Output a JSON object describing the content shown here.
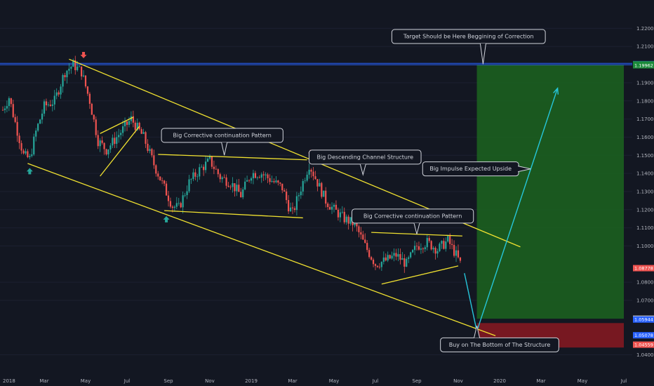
{
  "chart_data": {
    "type": "candlestick",
    "colors": {
      "background": "#131722",
      "up": "#26a69a",
      "down": "#ef5350",
      "trendline": "#f0e130",
      "level_line": "#2962ff",
      "projection": "#26c6da",
      "profit_zone": "#1b5e20",
      "loss_zone": "#801922",
      "axis_text": "#b2b5be"
    },
    "x_axis": {
      "ticks": [
        "2018",
        "Mar",
        "May",
        "Jul",
        "Sep",
        "Nov",
        "2019",
        "Mar",
        "May",
        "Jul",
        "Sep",
        "Nov",
        "2020",
        "Mar",
        "May",
        "Jul"
      ]
    },
    "y_axis": {
      "ylim": [
        1.0375,
        1.2275
      ],
      "ticks": [
        "1.22000",
        "1.21000",
        "1.19000",
        "1.18000",
        "1.17000",
        "1.16000",
        "1.15000",
        "1.14000",
        "1.13000",
        "1.12000",
        "1.11000",
        "1.10000",
        "1.08000",
        "1.07000",
        "1.04000"
      ]
    },
    "price_badges": [
      {
        "label": "1.20027",
        "value": 1.20027,
        "color": "#2962ff"
      },
      {
        "label": "1.20014",
        "value": 1.20014,
        "color": "#1b8a3a"
      },
      {
        "label": "1.19962",
        "value": 1.19962,
        "color": "#1b8a3a"
      },
      {
        "label": "1.08778",
        "value": 1.08778,
        "color": "#ef5350"
      },
      {
        "label": "1.05992",
        "value": 1.05992,
        "color": "#b2b5be"
      },
      {
        "label": "1.05944",
        "value": 1.05944,
        "color": "#2962ff"
      },
      {
        "label": "1.05078",
        "value": 1.05078,
        "color": "#2962ff"
      },
      {
        "label": "1.04559",
        "value": 1.04559,
        "color": "#ef5350"
      }
    ],
    "price_path": [
      {
        "t": 0.0,
        "p": 1.175
      },
      {
        "t": 0.3,
        "p": 1.182
      },
      {
        "t": 0.6,
        "p": 1.168
      },
      {
        "t": 1.0,
        "p": 1.15
      },
      {
        "t": 1.3,
        "p": 1.148
      },
      {
        "t": 1.6,
        "p": 1.163
      },
      {
        "t": 2.0,
        "p": 1.177
      },
      {
        "t": 2.5,
        "p": 1.18
      },
      {
        "t": 3.0,
        "p": 1.196
      },
      {
        "t": 3.4,
        "p": 1.2
      },
      {
        "t": 3.8,
        "p": 1.196
      },
      {
        "t": 4.2,
        "p": 1.18
      },
      {
        "t": 4.6,
        "p": 1.158
      },
      {
        "t": 5.0,
        "p": 1.153
      },
      {
        "t": 5.5,
        "p": 1.16
      },
      {
        "t": 6.2,
        "p": 1.17
      },
      {
        "t": 6.8,
        "p": 1.16
      },
      {
        "t": 7.3,
        "p": 1.145
      },
      {
        "t": 7.8,
        "p": 1.132
      },
      {
        "t": 8.2,
        "p": 1.122
      },
      {
        "t": 8.5,
        "p": 1.121
      },
      {
        "t": 9.0,
        "p": 1.135
      },
      {
        "t": 9.5,
        "p": 1.142
      },
      {
        "t": 10.0,
        "p": 1.147
      },
      {
        "t": 10.5,
        "p": 1.138
      },
      {
        "t": 11.0,
        "p": 1.135
      },
      {
        "t": 11.5,
        "p": 1.128
      },
      {
        "t": 12.0,
        "p": 1.14
      },
      {
        "t": 12.5,
        "p": 1.14
      },
      {
        "t": 13.0,
        "p": 1.136
      },
      {
        "t": 13.5,
        "p": 1.132
      },
      {
        "t": 13.8,
        "p": 1.122
      },
      {
        "t": 14.0,
        "p": 1.118
      },
      {
        "t": 14.4,
        "p": 1.132
      },
      {
        "t": 14.8,
        "p": 1.145
      },
      {
        "t": 15.2,
        "p": 1.135
      },
      {
        "t": 15.6,
        "p": 1.125
      },
      {
        "t": 16.0,
        "p": 1.12
      },
      {
        "t": 16.5,
        "p": 1.115
      },
      {
        "t": 17.0,
        "p": 1.112
      },
      {
        "t": 17.5,
        "p": 1.1
      },
      {
        "t": 18.0,
        "p": 1.09
      },
      {
        "t": 18.5,
        "p": 1.092
      },
      {
        "t": 19.0,
        "p": 1.095
      },
      {
        "t": 19.5,
        "p": 1.09
      },
      {
        "t": 20.0,
        "p": 1.1
      },
      {
        "t": 20.5,
        "p": 1.102
      },
      {
        "t": 21.0,
        "p": 1.098
      },
      {
        "t": 21.5,
        "p": 1.103
      },
      {
        "t": 21.9,
        "p": 1.095
      },
      {
        "t": 22.2,
        "p": 1.088
      }
    ],
    "trendlines": [
      {
        "name": "channel-top",
        "points": [
          {
            "t": 3.2,
            "p": 1.203
          },
          {
            "t": 25.0,
            "p": 1.0995
          }
        ]
      },
      {
        "name": "channel-bottom",
        "points": [
          {
            "t": 1.2,
            "p": 1.1455
          },
          {
            "t": 23.8,
            "p": 1.0505
          }
        ]
      },
      {
        "name": "flag-upper",
        "points": [
          {
            "t": 4.7,
            "p": 1.162
          },
          {
            "t": 6.3,
            "p": 1.171
          }
        ]
      },
      {
        "name": "flag-lower",
        "points": [
          {
            "t": 4.7,
            "p": 1.1385
          },
          {
            "t": 6.6,
            "p": 1.166
          }
        ]
      },
      {
        "name": "pattern1-top",
        "points": [
          {
            "t": 7.5,
            "p": 1.1505
          },
          {
            "t": 14.7,
            "p": 1.1475
          }
        ]
      },
      {
        "name": "pattern1-bottom",
        "points": [
          {
            "t": 7.8,
            "p": 1.1195
          },
          {
            "t": 14.5,
            "p": 1.1155
          }
        ]
      },
      {
        "name": "pattern2-top",
        "points": [
          {
            "t": 17.8,
            "p": 1.1075
          },
          {
            "t": 22.2,
            "p": 1.1055
          }
        ]
      },
      {
        "name": "pattern2-bottom",
        "points": [
          {
            "t": 18.3,
            "p": 1.079
          },
          {
            "t": 22.0,
            "p": 1.089
          }
        ]
      }
    ],
    "projection": [
      {
        "t": 22.3,
        "p": 1.085
      },
      {
        "t": 22.9,
        "p": 1.053
      },
      {
        "t": 26.8,
        "p": 1.187
      }
    ],
    "zones": [
      {
        "name": "profit-zone",
        "t_start": 22.9,
        "t_end": 30.0,
        "p_top": 1.2,
        "p_bottom": 1.0599
      },
      {
        "name": "loss-zone",
        "t_start": 22.9,
        "t_end": 30.0,
        "p_top": 1.0575,
        "p_bottom": 1.044
      }
    ],
    "horizontal_levels": [
      {
        "name": "target-level",
        "p": 1.2003
      }
    ],
    "markers": [
      {
        "name": "top-marker",
        "t": 3.9,
        "p": 1.2035,
        "dir": "down",
        "color": "#ef5350"
      },
      {
        "name": "swing-high-marker",
        "t": 14.9,
        "p": 1.1495,
        "dir": "down",
        "color": "#ef5350"
      },
      {
        "name": "low-marker-1",
        "t": 1.3,
        "p": 1.143,
        "dir": "up",
        "color": "#26a69a"
      },
      {
        "name": "low-marker-2",
        "t": 7.9,
        "p": 1.1165,
        "dir": "up",
        "color": "#26a69a"
      }
    ],
    "annotations": [
      {
        "name": "note-target",
        "text": "Target Should be Here Beggining of Correction",
        "t": 22.5,
        "p": 1.2155,
        "pointer": {
          "t": 23.2,
          "p": 1.2003
        }
      },
      {
        "name": "note-big-corrective-1",
        "text": "Big Corrective continuation Pattern",
        "t": 10.6,
        "p": 1.161,
        "pointer": {
          "t": 10.7,
          "p": 1.15
        }
      },
      {
        "name": "note-descending-channel",
        "text": "Big Descending Channel Structure",
        "t": 17.5,
        "p": 1.149,
        "pointer": {
          "t": 17.4,
          "p": 1.1393
        }
      },
      {
        "name": "note-big-corrective-2",
        "text": "Big Corrective continuation Pattern",
        "t": 19.8,
        "p": 1.1165,
        "pointer": {
          "t": 20.0,
          "p": 1.1065
        }
      },
      {
        "name": "note-impulse",
        "text": "Big Impulse Expected Upside",
        "t": 22.6,
        "p": 1.1425,
        "pointer": {
          "t": 25.5,
          "p": 1.1425
        }
      },
      {
        "name": "note-buy",
        "text": "Buy on The Bottom of The Structure",
        "t": 24.0,
        "p": 1.0455,
        "pointer": {
          "t": 22.9,
          "p": 1.056
        }
      }
    ]
  }
}
